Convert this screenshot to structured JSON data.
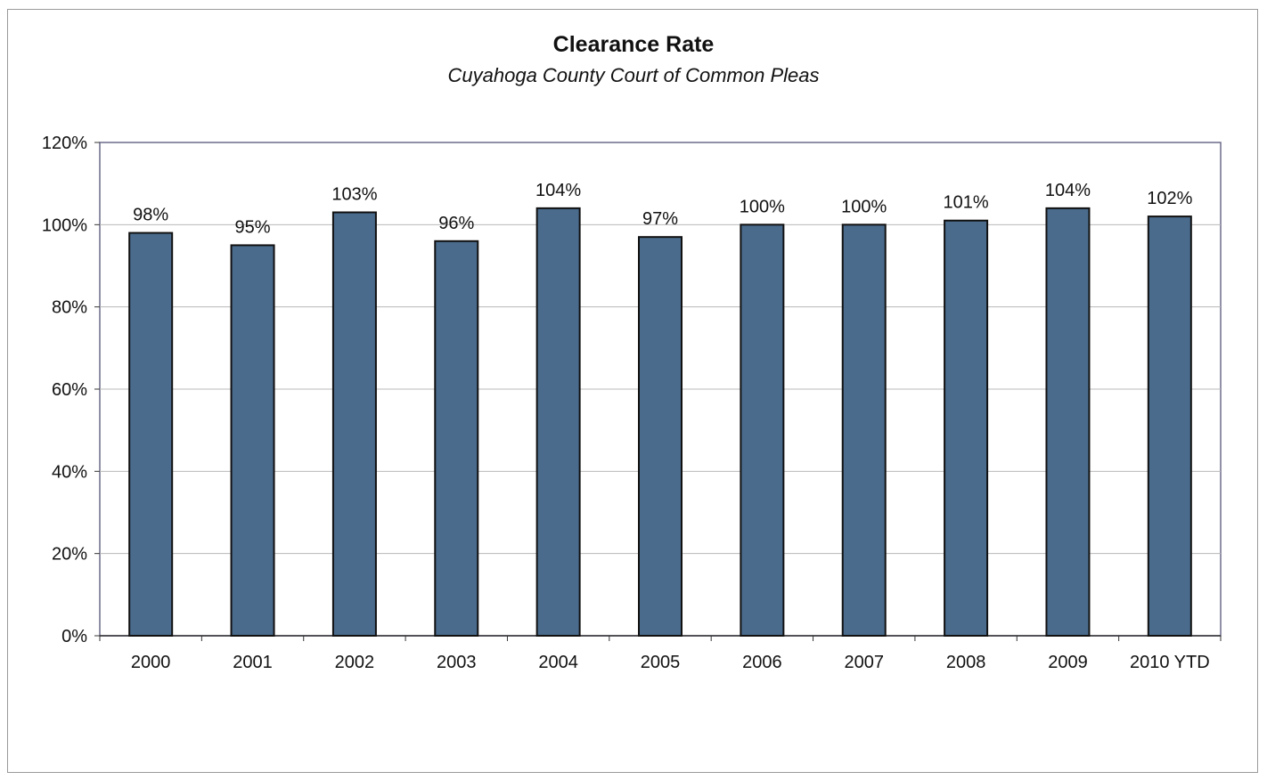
{
  "chart_data": {
    "type": "bar",
    "title": "Clearance Rate",
    "subtitle": "Cuyahoga County Court of Common Pleas",
    "categories": [
      "2000",
      "2001",
      "2002",
      "2003",
      "2004",
      "2005",
      "2006",
      "2007",
      "2008",
      "2009",
      "2010 YTD"
    ],
    "values": [
      98,
      95,
      103,
      96,
      104,
      97,
      100,
      100,
      101,
      104,
      102
    ],
    "data_labels": [
      "98%",
      "95%",
      "103%",
      "96%",
      "104%",
      "97%",
      "100%",
      "100%",
      "101%",
      "104%",
      "102%"
    ],
    "ylim": [
      0,
      120
    ],
    "yticks": [
      0,
      20,
      40,
      60,
      80,
      100,
      120
    ],
    "ytick_labels": [
      "0%",
      "20%",
      "40%",
      "60%",
      "80%",
      "100%",
      "120%"
    ],
    "grid": true,
    "legend": "none",
    "bar_color": "#4a6b8c",
    "xlabel": "",
    "ylabel": ""
  }
}
